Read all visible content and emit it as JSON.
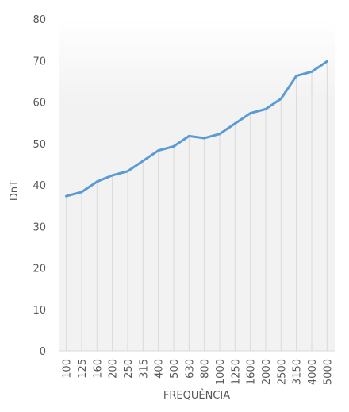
{
  "chart_data": {
    "type": "line",
    "title": "",
    "xlabel": "FREQUÊNCIA",
    "ylabel": "DnT",
    "ylim": [
      0,
      80
    ],
    "yticks": [
      0,
      10,
      20,
      30,
      40,
      50,
      60,
      70,
      80
    ],
    "grid": "vertical drop lines at each point",
    "legend": "none",
    "categories": [
      "100",
      "125",
      "160",
      "200",
      "250",
      "315",
      "400",
      "500",
      "630",
      "800",
      "1000",
      "1250",
      "1600",
      "2000",
      "2500",
      "3150",
      "4000",
      "5000"
    ],
    "series": [
      {
        "values": [
          37.3,
          38.3,
          40.8,
          42.3,
          43.3,
          45.8,
          48.3,
          49.3,
          51.8,
          51.3,
          52.3,
          54.8,
          57.3,
          58.3,
          60.8,
          66.3,
          67.3,
          69.8
        ],
        "color": "#5b9bd5"
      }
    ],
    "colors": {
      "line": "#5b9bd5",
      "droplines": "#d9d9d9",
      "baseline": "#d9d9d9",
      "text": "#595959"
    }
  }
}
